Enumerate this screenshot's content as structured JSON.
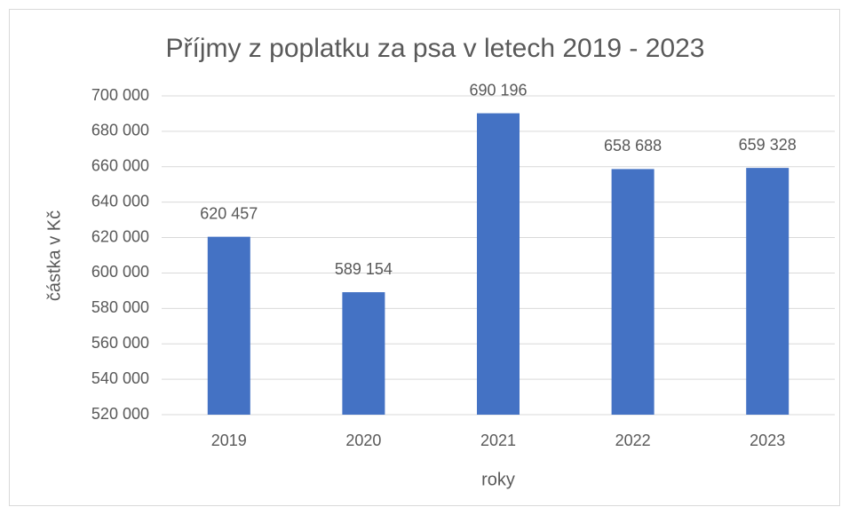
{
  "chart_data": {
    "type": "bar",
    "title": "Příjmy z poplatku za psa v letech 2019 - 2023",
    "x_label": "roky",
    "y_label": "částka v Kč",
    "categories": [
      "2019",
      "2020",
      "2021",
      "2022",
      "2023"
    ],
    "values": [
      620457,
      589154,
      690196,
      658688,
      659328
    ],
    "value_labels": [
      "620 457",
      "589 154",
      "690 196",
      "658 688",
      "659 328"
    ],
    "color": "#4472c4",
    "ylim": [
      520000,
      700000
    ],
    "yticks": [
      {
        "value": 520000,
        "label": "520 000"
      },
      {
        "value": 540000,
        "label": "540 000"
      },
      {
        "value": 560000,
        "label": "560 000"
      },
      {
        "value": 580000,
        "label": "580 000"
      },
      {
        "value": 600000,
        "label": "600 000"
      },
      {
        "value": 620000,
        "label": "620 000"
      },
      {
        "value": 640000,
        "label": "640 000"
      },
      {
        "value": 660000,
        "label": "660 000"
      },
      {
        "value": 680000,
        "label": "680 000"
      },
      {
        "value": 700000,
        "label": "700 000"
      }
    ],
    "grid": true
  }
}
